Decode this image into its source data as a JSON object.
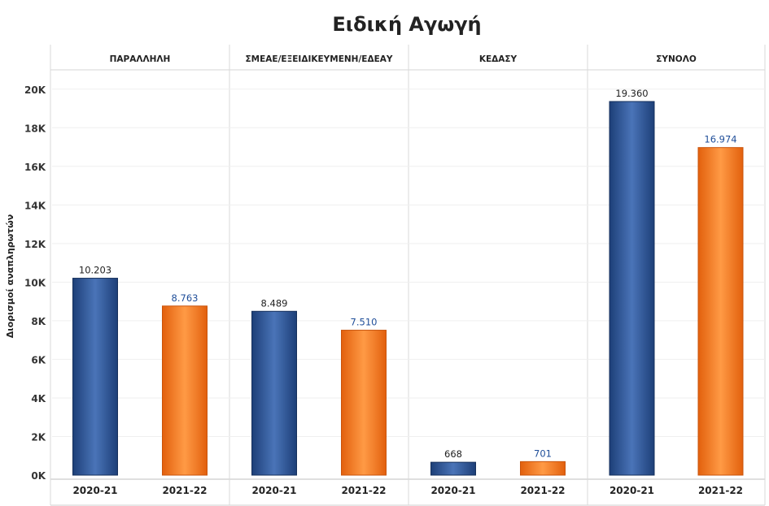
{
  "chart_data": {
    "type": "bar",
    "title": "Ειδική Αγωγή",
    "ylabel": "Διορισμοί αναπληρωτών",
    "xlabel": "",
    "ylim": [
      0,
      21000
    ],
    "y_ticks": [
      0,
      2000,
      4000,
      6000,
      8000,
      10000,
      12000,
      14000,
      16000,
      18000,
      20000
    ],
    "y_tick_labels": [
      "0K",
      "2K",
      "4K",
      "6K",
      "8K",
      "10K",
      "12K",
      "14K",
      "16K",
      "18K",
      "20K"
    ],
    "grid": true,
    "categories": [
      "2020-21",
      "2021-22"
    ],
    "series_colors": {
      "2020-21": "#2b5597",
      "2021-22": "#f47a1f"
    },
    "label_colors": {
      "2020-21": "#222222",
      "2021-22": "#1f4e99"
    },
    "panels": [
      {
        "name": "ΠΑΡΑΛΛΗΛΗ",
        "values": [
          10203,
          8763
        ],
        "labels": [
          "10.203",
          "8.763"
        ]
      },
      {
        "name": "ΣΜΕΑΕ/ΕΞΕΙΔΙΚΕΥΜΕΝΗ/ΕΔΕΑΥ",
        "values": [
          8489,
          7510
        ],
        "labels": [
          "8.489",
          "7.510"
        ]
      },
      {
        "name": "ΚΕΔΑΣΥ",
        "values": [
          668,
          701
        ],
        "labels": [
          "668",
          "701"
        ]
      },
      {
        "name": "ΣΥΝΟΛΟ",
        "values": [
          19360,
          16974
        ],
        "labels": [
          "19.360",
          "16.974"
        ]
      }
    ]
  }
}
